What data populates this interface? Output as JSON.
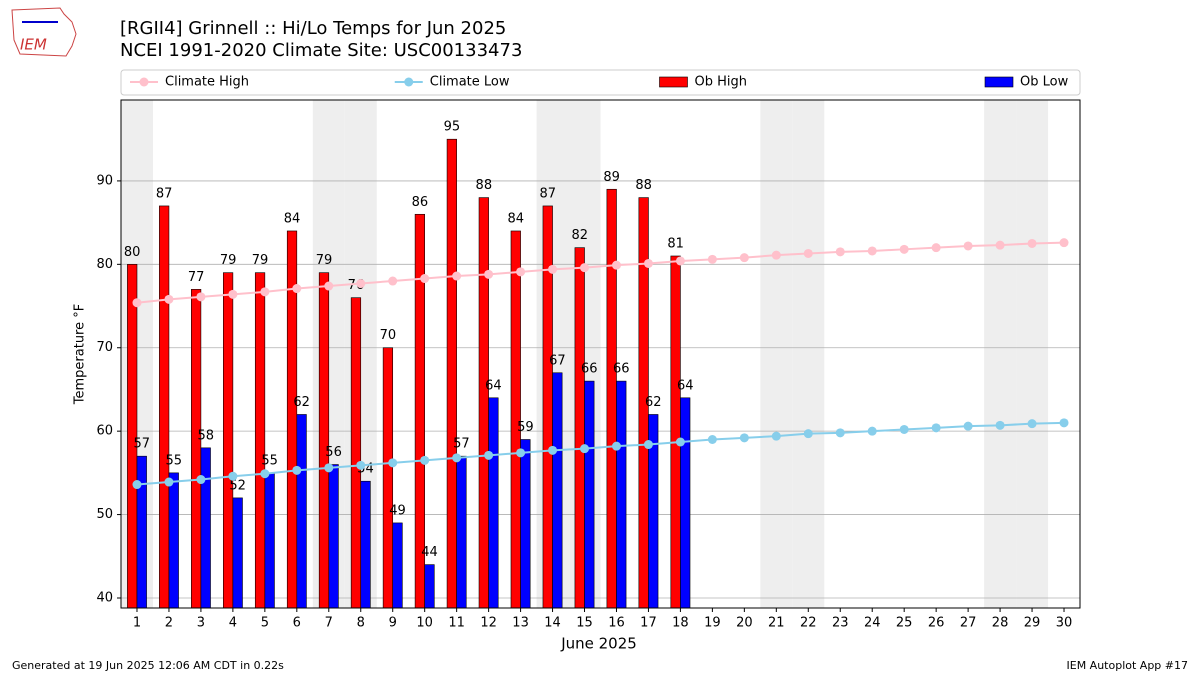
{
  "logo_text": "IEM",
  "footer_left": "Generated at 19 Jun 2025 12:06 AM CDT in 0.22s",
  "footer_right": "IEM Autoplot App #17",
  "chart_data": {
    "type": "bar",
    "title": "[RGII4] Grinnell :: Hi/Lo Temps for Jun 2025",
    "subtitle": "NCEI 1991-2020 Climate Site: USC00133473",
    "x_label": "June 2025",
    "y_label": "Temperature °F",
    "x": [
      1,
      2,
      3,
      4,
      5,
      6,
      7,
      8,
      9,
      10,
      11,
      12,
      13,
      14,
      15,
      16,
      17,
      18,
      19,
      20,
      21,
      22,
      23,
      24,
      25,
      26,
      27,
      28,
      29,
      30
    ],
    "xlim": [
      0.5,
      30.5
    ],
    "xticks": [
      1,
      2,
      3,
      4,
      5,
      6,
      7,
      8,
      9,
      10,
      11,
      12,
      13,
      14,
      15,
      16,
      17,
      18,
      19,
      20,
      21,
      22,
      23,
      24,
      25,
      26,
      27,
      28,
      29,
      30
    ],
    "ylim": [
      38.8,
      99.7
    ],
    "yticks": [
      40,
      50,
      60,
      70,
      80,
      90
    ],
    "grid": true,
    "legend": "top",
    "shaded_days": [
      1,
      7,
      8,
      14,
      15,
      21,
      22,
      28,
      29
    ],
    "series": [
      {
        "name": "Climate High",
        "kind": "line",
        "color": "#ffc0cb",
        "values": [
          75.4,
          75.8,
          76.1,
          76.4,
          76.7,
          77.1,
          77.4,
          77.7,
          78.0,
          78.3,
          78.6,
          78.8,
          79.1,
          79.4,
          79.6,
          79.9,
          80.1,
          80.4,
          80.6,
          80.8,
          81.1,
          81.3,
          81.5,
          81.6,
          81.8,
          82.0,
          82.2,
          82.3,
          82.5,
          82.6
        ]
      },
      {
        "name": "Climate Low",
        "kind": "line",
        "color": "#87ceeb",
        "values": [
          53.6,
          53.9,
          54.2,
          54.6,
          54.9,
          55.3,
          55.6,
          55.9,
          56.2,
          56.5,
          56.8,
          57.1,
          57.4,
          57.7,
          57.9,
          58.2,
          58.4,
          58.7,
          59.0,
          59.2,
          59.4,
          59.7,
          59.8,
          60.0,
          60.2,
          60.4,
          60.6,
          60.7,
          60.9,
          61.0
        ]
      },
      {
        "name": "Ob High",
        "kind": "bar",
        "color": "#ff0000",
        "values": [
          80,
          87,
          77,
          79,
          79,
          84,
          79,
          76,
          70,
          86,
          95,
          88,
          84,
          87,
          82,
          89,
          88,
          81,
          null,
          null,
          null,
          null,
          null,
          null,
          null,
          null,
          null,
          null,
          null,
          null
        ]
      },
      {
        "name": "Ob Low",
        "kind": "bar",
        "color": "#0000ff",
        "values": [
          57,
          55,
          58,
          52,
          55,
          62,
          56,
          54,
          49,
          44,
          57,
          64,
          59,
          67,
          66,
          66,
          62,
          64,
          null,
          null,
          null,
          null,
          null,
          null,
          null,
          null,
          null,
          null,
          null,
          null
        ]
      }
    ]
  }
}
